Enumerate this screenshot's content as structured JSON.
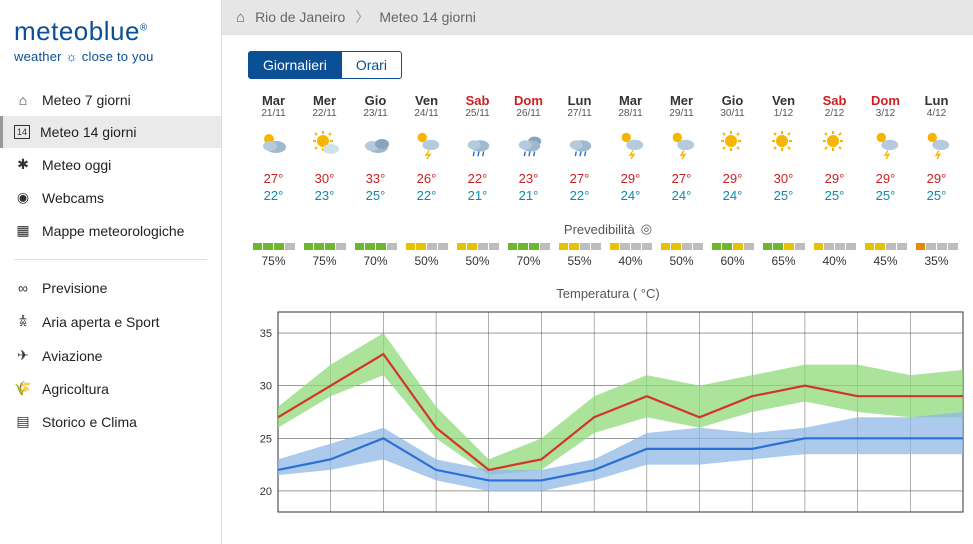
{
  "logo": {
    "brand": "meteoblue",
    "tagline_left": "weather",
    "tagline_right": "close to you"
  },
  "breadcrumb": {
    "location": "Rio de Janeiro",
    "page": "Meteo 14 giorni"
  },
  "sidebar": {
    "group1": [
      {
        "icon": "home-icon",
        "glyph": "⌂",
        "label": "Meteo 7 giorni"
      },
      {
        "icon": "cal14-icon",
        "glyph": "14",
        "label": "Meteo 14 giorni",
        "active": true
      },
      {
        "icon": "today-icon",
        "glyph": "✱",
        "label": "Meteo oggi"
      },
      {
        "icon": "webcam-icon",
        "glyph": "◉",
        "label": "Webcams"
      },
      {
        "icon": "maps-icon",
        "glyph": "▦",
        "label": "Mappe meteorologiche"
      }
    ],
    "group2": [
      {
        "icon": "forecast-icon",
        "glyph": "∞",
        "label": "Previsione"
      },
      {
        "icon": "outdoor-icon",
        "glyph": "𖠋",
        "label": "Aria aperta e Sport"
      },
      {
        "icon": "aviation-icon",
        "glyph": "✈",
        "label": "Aviazione"
      },
      {
        "icon": "agri-icon",
        "glyph": "🌾",
        "label": "Agricoltura"
      },
      {
        "icon": "history-icon",
        "glyph": "▤",
        "label": "Storico e Clima"
      }
    ]
  },
  "tabs": {
    "daily": "Giornalieri",
    "hourly": "Orari"
  },
  "section_labels": {
    "predictability": "Prevedibilità",
    "temperature": "Temperatura ( °C)"
  },
  "days": [
    {
      "name": "Mar",
      "date": "21/11",
      "icon": "partcloud",
      "hi": "27°",
      "lo": "22°",
      "pred": 75,
      "weekend": false
    },
    {
      "name": "Mer",
      "date": "22/11",
      "icon": "sunny-cloud",
      "hi": "30°",
      "lo": "23°",
      "pred": 75,
      "weekend": false
    },
    {
      "name": "Gio",
      "date": "23/11",
      "icon": "cloudy",
      "hi": "33°",
      "lo": "25°",
      "pred": 70,
      "weekend": false
    },
    {
      "name": "Ven",
      "date": "24/11",
      "icon": "sun-storm",
      "hi": "26°",
      "lo": "22°",
      "pred": 50,
      "weekend": false
    },
    {
      "name": "Sab",
      "date": "25/11",
      "icon": "rain",
      "hi": "22°",
      "lo": "21°",
      "pred": 50,
      "weekend": true
    },
    {
      "name": "Dom",
      "date": "26/11",
      "icon": "cloud-rain",
      "hi": "23°",
      "lo": "21°",
      "pred": 70,
      "weekend": true
    },
    {
      "name": "Lun",
      "date": "27/11",
      "icon": "rain",
      "hi": "27°",
      "lo": "22°",
      "pred": 55,
      "weekend": false
    },
    {
      "name": "Mar",
      "date": "28/11",
      "icon": "sun-storm",
      "hi": "29°",
      "lo": "24°",
      "pred": 40,
      "weekend": false
    },
    {
      "name": "Mer",
      "date": "29/11",
      "icon": "sun-storm",
      "hi": "27°",
      "lo": "24°",
      "pred": 50,
      "weekend": false
    },
    {
      "name": "Gio",
      "date": "30/11",
      "icon": "sunny",
      "hi": "29°",
      "lo": "24°",
      "pred": 60,
      "weekend": false
    },
    {
      "name": "Ven",
      "date": "1/12",
      "icon": "sunny",
      "hi": "30°",
      "lo": "25°",
      "pred": 65,
      "weekend": false
    },
    {
      "name": "Sab",
      "date": "2/12",
      "icon": "sunny",
      "hi": "29°",
      "lo": "25°",
      "pred": 40,
      "weekend": true
    },
    {
      "name": "Dom",
      "date": "3/12",
      "icon": "sun-storm",
      "hi": "29°",
      "lo": "25°",
      "pred": 45,
      "weekend": true
    },
    {
      "name": "Lun",
      "date": "4/12",
      "icon": "sun-storm",
      "hi": "29°",
      "lo": "25°",
      "pred": 35,
      "weekend": false
    }
  ],
  "pred_colors": {
    "green": "#6fb62f",
    "yellow": "#e6c200",
    "orange": "#e68a00",
    "gray": "#bdbdbd"
  },
  "chart": {
    "type": "line-band",
    "ylim": [
      18,
      37
    ],
    "yticks": [
      20,
      25,
      30,
      35
    ],
    "hi_line": [
      27,
      30,
      33,
      26,
      22,
      23,
      27,
      29,
      27,
      29,
      30,
      29,
      29,
      29
    ],
    "lo_line": [
      22,
      23,
      25,
      22,
      21,
      21,
      22,
      24,
      24,
      24,
      25,
      25,
      25,
      25
    ],
    "hi_band_up": [
      28,
      32,
      35,
      28,
      23,
      25,
      29,
      31,
      30,
      31,
      32,
      32,
      31,
      31.5
    ],
    "hi_band_low": [
      26,
      29,
      31,
      25,
      21.5,
      22,
      25.5,
      27,
      26,
      27.5,
      28.5,
      27.5,
      27,
      27
    ],
    "lo_band_up": [
      23,
      24.5,
      26,
      23,
      22,
      22,
      23,
      25.5,
      26,
      25.5,
      26,
      27,
      27,
      27.5
    ],
    "lo_band_low": [
      21.5,
      22,
      23,
      21,
      20,
      20,
      21,
      22.5,
      22.5,
      23,
      23.5,
      23.5,
      23.5,
      23.5
    ],
    "colors": {
      "hi_line": "#d4352a",
      "lo_line": "#2a6fd4",
      "hi_band": "#8fd97a",
      "lo_band": "#8fb8e6",
      "grid": "#333",
      "background": "#ffffff"
    },
    "line_width": 2.2
  }
}
